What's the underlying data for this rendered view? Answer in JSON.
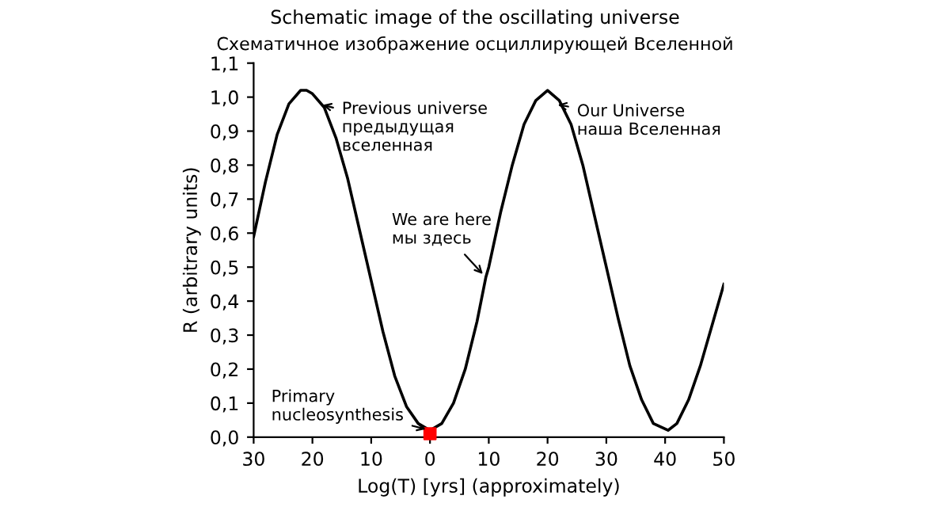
{
  "chart_data": {
    "type": "line",
    "title": "Schematic image of the oscillating universe",
    "subtitle": "Схематичное изображение осциллирующей Вселенной",
    "xlabel": "Log(T) [yrs] (approximately)",
    "ylabel": "R (arbitrary units)",
    "series": [
      {
        "color": "#000000",
        "x": [
          -30,
          -28,
          -26,
          -24,
          -22,
          -21,
          -20,
          -18,
          -16,
          -14,
          -12,
          -10,
          -8,
          -6,
          -4,
          -2,
          0,
          2,
          4,
          6,
          8,
          9.5,
          10,
          12,
          14,
          16,
          18,
          20,
          22,
          24,
          26,
          28,
          30,
          32,
          34,
          36,
          38,
          40.5,
          42,
          44,
          46,
          48,
          50
        ],
        "values": [
          0.59,
          0.75,
          0.89,
          0.98,
          1.02,
          1.02,
          1.01,
          0.97,
          0.88,
          0.76,
          0.61,
          0.46,
          0.31,
          0.18,
          0.09,
          0.04,
          0.02,
          0.04,
          0.1,
          0.2,
          0.34,
          0.47,
          0.5,
          0.66,
          0.8,
          0.92,
          0.99,
          1.02,
          0.99,
          0.92,
          0.8,
          0.65,
          0.5,
          0.35,
          0.21,
          0.11,
          0.04,
          0.02,
          0.04,
          0.11,
          0.21,
          0.33,
          0.45
        ]
      },
      {
        "type": "scatter",
        "color": "#ff0000",
        "marker": "square",
        "x": [
          0
        ],
        "values": [
          0.01
        ]
      }
    ],
    "annotations": [
      {
        "text": "Previous universe\nпредыдущая\nвселенная",
        "x": -19,
        "y": 0.98
      },
      {
        "text": "Our Universe\nнаша Вселенная",
        "x": 21,
        "y": 0.98
      },
      {
        "text": "We are here\nмы здесь",
        "x": 9.5,
        "y": 0.47
      },
      {
        "text": "Primary\nnucleosynthesis",
        "x": 0,
        "y": 0.02
      }
    ],
    "xlim": [
      -30,
      50
    ],
    "xticks": [
      {
        "value": -30,
        "label": "30"
      },
      {
        "value": -20,
        "label": "20"
      },
      {
        "value": -10,
        "label": "10"
      },
      0,
      10,
      20,
      30,
      40,
      50
    ],
    "ylim": [
      0,
      1.1
    ],
    "yticks": [
      {
        "value": 0,
        "label": "0,0"
      },
      {
        "value": 0.1,
        "label": "0,1"
      },
      {
        "value": 0.2,
        "label": "0,2"
      },
      {
        "value": 0.3,
        "label": "0,3"
      },
      {
        "value": 0.4,
        "label": "0,4"
      },
      {
        "value": 0.5,
        "label": "0,5"
      },
      {
        "value": 0.6,
        "label": "0,6"
      },
      {
        "value": 0.7,
        "label": "0,7"
      },
      {
        "value": 0.8,
        "label": "0,8"
      },
      {
        "value": 0.9,
        "label": "0,9"
      },
      {
        "value": 1.0,
        "label": "1,0"
      },
      {
        "value": 1.1,
        "label": "1,1"
      }
    ],
    "grid": false,
    "legend": false
  }
}
